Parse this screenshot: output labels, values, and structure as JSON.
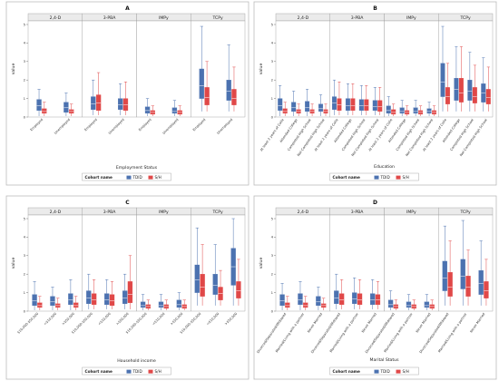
{
  "colors": {
    "tdid": "#4C72B0",
    "sh": "#E04848",
    "strip_bg": "#EBEBEB",
    "frame": "#BBBBBB"
  },
  "legend": {
    "title": "Cohort name",
    "items": [
      "TDID",
      "S/H"
    ]
  },
  "chart_data": [
    {
      "type": "box",
      "title": "A",
      "xlabel": "Employment Status",
      "ylabel": "value",
      "ylim": [
        0,
        5
      ],
      "yticks": [
        0,
        1,
        2,
        3,
        4,
        5
      ],
      "panels": [
        "2,4-D",
        "3-PBA",
        "IMPy",
        "TCPy"
      ],
      "categories": [
        "Employed",
        "Unemployed"
      ],
      "series": [
        {
          "name": "TDID",
          "values": [
            [
              [
                0.05,
                0.35,
                0.6,
                0.95,
                1.5
              ],
              [
                0.05,
                0.25,
                0.5,
                0.8,
                1.3
              ]
            ],
            [
              [
                0.1,
                0.4,
                0.7,
                1.1,
                2.0
              ],
              [
                0.1,
                0.4,
                0.65,
                1.0,
                1.8
              ]
            ],
            [
              [
                0.05,
                0.2,
                0.35,
                0.55,
                1.0
              ],
              [
                0.05,
                0.2,
                0.3,
                0.5,
                0.9
              ]
            ],
            [
              [
                0.3,
                1.0,
                1.7,
                2.6,
                4.9
              ],
              [
                0.3,
                0.9,
                1.4,
                2.0,
                3.9
              ]
            ]
          ]
        },
        {
          "name": "S/H",
          "values": [
            [
              [
                0.05,
                0.2,
                0.3,
                0.45,
                0.8
              ],
              [
                0.05,
                0.2,
                0.3,
                0.4,
                0.7
              ]
            ],
            [
              [
                0.1,
                0.35,
                0.75,
                1.2,
                2.4
              ],
              [
                0.1,
                0.35,
                0.65,
                1.0,
                1.9
              ]
            ],
            [
              [
                0.05,
                0.15,
                0.25,
                0.35,
                0.6
              ],
              [
                0.05,
                0.15,
                0.25,
                0.35,
                0.6
              ]
            ],
            [
              [
                0.3,
                0.65,
                1.05,
                1.6,
                3.0
              ],
              [
                0.3,
                0.65,
                1.0,
                1.5,
                2.7
              ]
            ]
          ]
        }
      ]
    },
    {
      "type": "box",
      "title": "B",
      "xlabel": "Education",
      "ylabel": "value",
      "ylim": [
        0,
        5
      ],
      "yticks": [
        0,
        1,
        2,
        3,
        4,
        5
      ],
      "panels": [
        "2,4-D",
        "3-PBA",
        "IMPy",
        "TCPy"
      ],
      "categories": [
        "At least 2 years of Colle",
        "Attended College",
        "Completed High School",
        "Not Completed High School"
      ],
      "series": [
        {
          "name": "TDID",
          "values": [
            [
              [
                0.05,
                0.35,
                0.6,
                1.0,
                1.7
              ],
              [
                0.05,
                0.3,
                0.5,
                0.8,
                1.4
              ],
              [
                0.05,
                0.3,
                0.5,
                0.85,
                1.5
              ],
              [
                0.05,
                0.3,
                0.45,
                0.7,
                1.2
              ]
            ],
            [
              [
                0.1,
                0.4,
                0.75,
                1.1,
                2.0
              ],
              [
                0.1,
                0.35,
                0.6,
                1.0,
                1.8
              ],
              [
                0.1,
                0.35,
                0.6,
                0.95,
                1.7
              ],
              [
                0.1,
                0.35,
                0.55,
                0.9,
                1.6
              ]
            ],
            [
              [
                0.05,
                0.2,
                0.35,
                0.6,
                1.1
              ],
              [
                0.05,
                0.2,
                0.3,
                0.5,
                0.9
              ],
              [
                0.05,
                0.2,
                0.3,
                0.5,
                0.9
              ],
              [
                0.05,
                0.2,
                0.3,
                0.45,
                0.8
              ]
            ],
            [
              [
                0.3,
                1.1,
                1.9,
                2.9,
                4.9
              ],
              [
                0.3,
                0.9,
                1.5,
                2.1,
                3.8
              ],
              [
                0.3,
                0.9,
                1.4,
                2.0,
                3.5
              ],
              [
                0.3,
                0.8,
                1.3,
                1.8,
                3.2
              ]
            ]
          ]
        },
        {
          "name": "S/H",
          "values": [
            [
              [
                0.05,
                0.2,
                0.3,
                0.45,
                0.8
              ],
              [
                0.05,
                0.2,
                0.3,
                0.4,
                0.7
              ],
              [
                0.05,
                0.2,
                0.3,
                0.4,
                0.7
              ],
              [
                0.05,
                0.2,
                0.3,
                0.4,
                0.7
              ]
            ],
            [
              [
                0.1,
                0.35,
                0.65,
                1.0,
                1.9
              ],
              [
                0.1,
                0.35,
                0.6,
                1.0,
                1.8
              ],
              [
                0.1,
                0.35,
                0.6,
                0.95,
                1.7
              ],
              [
                0.1,
                0.3,
                0.55,
                0.9,
                1.6
              ]
            ],
            [
              [
                0.05,
                0.15,
                0.25,
                0.4,
                0.7
              ],
              [
                0.05,
                0.15,
                0.25,
                0.35,
                0.6
              ],
              [
                0.05,
                0.15,
                0.25,
                0.35,
                0.6
              ],
              [
                0.05,
                0.15,
                0.25,
                0.35,
                0.6
              ]
            ],
            [
              [
                0.3,
                0.7,
                1.1,
                1.6,
                2.9
              ],
              [
                0.3,
                0.8,
                1.3,
                2.1,
                3.8
              ],
              [
                0.3,
                0.75,
                1.1,
                1.6,
                2.8
              ],
              [
                0.3,
                0.7,
                1.05,
                1.5,
                2.7
              ]
            ]
          ]
        }
      ]
    },
    {
      "type": "box",
      "title": "C",
      "xlabel": "Household income",
      "ylabel": "value",
      "ylim": [
        0,
        5
      ],
      "yticks": [
        0,
        1,
        2,
        3,
        4,
        5
      ],
      "panels": [
        "2,4-D",
        "3-PBA",
        "IMPy",
        "TCPy"
      ],
      "categories": [
        "$10,000-$50,000",
        "<$10,000",
        ">$50,000"
      ],
      "series": [
        {
          "name": "TDID",
          "values": [
            [
              [
                0.05,
                0.3,
                0.55,
                0.9,
                1.6
              ],
              [
                0.05,
                0.3,
                0.5,
                0.8,
                1.3
              ],
              [
                0.05,
                0.35,
                0.6,
                0.95,
                1.7
              ]
            ],
            [
              [
                0.1,
                0.4,
                0.7,
                1.1,
                2.0
              ],
              [
                0.1,
                0.35,
                0.6,
                0.95,
                1.7
              ],
              [
                0.1,
                0.4,
                0.7,
                1.1,
                2.0
              ]
            ],
            [
              [
                0.05,
                0.2,
                0.3,
                0.5,
                0.9
              ],
              [
                0.05,
                0.2,
                0.3,
                0.5,
                0.9
              ],
              [
                0.05,
                0.2,
                0.35,
                0.6,
                1.0
              ]
            ],
            [
              [
                0.3,
                1.0,
                1.7,
                2.5,
                4.5
              ],
              [
                0.3,
                0.9,
                1.4,
                2.0,
                3.6
              ],
              [
                0.3,
                1.4,
                2.4,
                3.4,
                5.0
              ]
            ]
          ]
        },
        {
          "name": "S/H",
          "values": [
            [
              [
                0.05,
                0.2,
                0.3,
                0.45,
                0.8
              ],
              [
                0.05,
                0.2,
                0.3,
                0.4,
                0.7
              ],
              [
                0.05,
                0.2,
                0.3,
                0.45,
                0.8
              ]
            ],
            [
              [
                0.1,
                0.35,
                0.6,
                0.95,
                1.7
              ],
              [
                0.1,
                0.3,
                0.55,
                0.9,
                1.6
              ],
              [
                0.1,
                0.45,
                0.9,
                1.6,
                3.0
              ]
            ],
            [
              [
                0.05,
                0.15,
                0.25,
                0.35,
                0.6
              ],
              [
                0.05,
                0.15,
                0.25,
                0.35,
                0.6
              ],
              [
                0.05,
                0.15,
                0.25,
                0.35,
                0.6
              ]
            ],
            [
              [
                0.3,
                0.8,
                1.3,
                2.0,
                3.6
              ],
              [
                0.3,
                0.6,
                0.95,
                1.3,
                2.2
              ],
              [
                0.3,
                0.7,
                1.1,
                1.6,
                2.8
              ]
            ]
          ]
        }
      ]
    },
    {
      "type": "box",
      "title": "D",
      "xlabel": "Marital Status",
      "ylabel": "value",
      "ylim": [
        0,
        5
      ],
      "yticks": [
        0,
        1,
        2,
        3,
        4,
        5
      ],
      "panels": [
        "2,4-D",
        "3-PBA",
        "IMPy",
        "TCPy"
      ],
      "categories": [
        "Divorced/Separated/Widowed",
        "Married/Living with a partner",
        "Never Married"
      ],
      "series": [
        {
          "name": "TDID",
          "values": [
            [
              [
                0.05,
                0.3,
                0.55,
                0.9,
                1.5
              ],
              [
                0.05,
                0.35,
                0.6,
                0.95,
                1.6
              ],
              [
                0.05,
                0.3,
                0.5,
                0.8,
                1.3
              ]
            ],
            [
              [
                0.1,
                0.4,
                0.7,
                1.1,
                2.0
              ],
              [
                0.1,
                0.4,
                0.65,
                1.0,
                1.8
              ],
              [
                0.1,
                0.35,
                0.6,
                0.95,
                1.7
              ]
            ],
            [
              [
                0.05,
                0.2,
                0.35,
                0.6,
                1.1
              ],
              [
                0.05,
                0.2,
                0.3,
                0.5,
                0.9
              ],
              [
                0.05,
                0.2,
                0.3,
                0.5,
                0.9
              ]
            ],
            [
              [
                0.3,
                1.1,
                1.8,
                2.7,
                4.6
              ],
              [
                0.3,
                1.2,
                1.9,
                2.8,
                4.9
              ],
              [
                0.3,
                0.9,
                1.5,
                2.2,
                3.8
              ]
            ]
          ]
        },
        {
          "name": "S/H",
          "values": [
            [
              [
                0.05,
                0.2,
                0.3,
                0.45,
                0.8
              ],
              [
                0.05,
                0.2,
                0.3,
                0.45,
                0.8
              ],
              [
                0.05,
                0.2,
                0.3,
                0.4,
                0.7
              ]
            ],
            [
              [
                0.1,
                0.35,
                0.6,
                0.95,
                1.7
              ],
              [
                0.1,
                0.35,
                0.6,
                0.95,
                1.7
              ],
              [
                0.1,
                0.35,
                0.6,
                0.9,
                1.6
              ]
            ],
            [
              [
                0.05,
                0.15,
                0.25,
                0.35,
                0.6
              ],
              [
                0.05,
                0.15,
                0.25,
                0.35,
                0.6
              ],
              [
                0.05,
                0.15,
                0.25,
                0.35,
                0.6
              ]
            ],
            [
              [
                0.3,
                0.8,
                1.3,
                2.1,
                3.8
              ],
              [
                0.3,
                0.8,
                1.3,
                1.9,
                3.3
              ],
              [
                0.3,
                0.7,
                1.1,
                1.6,
                2.8
              ]
            ]
          ]
        }
      ]
    }
  ]
}
